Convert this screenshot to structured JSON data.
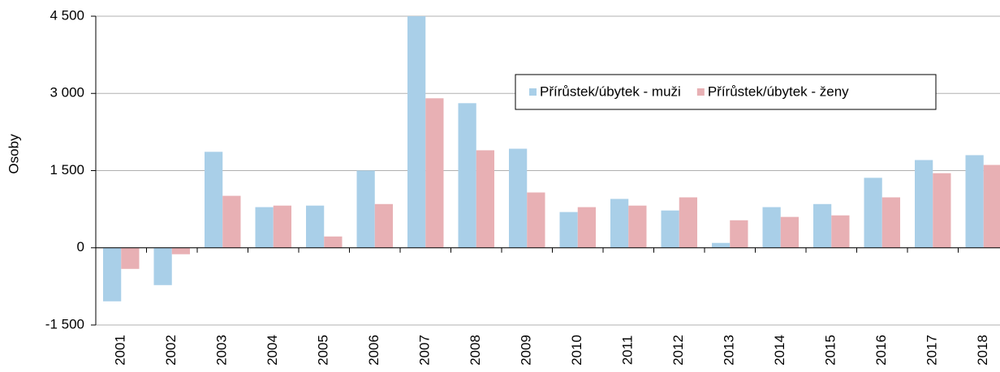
{
  "chart_data": {
    "type": "bar",
    "y_label": "Osoby",
    "categories": [
      "2001",
      "2002",
      "2003",
      "2004",
      "2005",
      "2006",
      "2007",
      "2008",
      "2009",
      "2010",
      "2011",
      "2012",
      "2013",
      "2014",
      "2015",
      "2016",
      "2017",
      "2018"
    ],
    "series": [
      {
        "name": "Přírůstek/úbytek - muži",
        "color": "#a9cfe8",
        "values": [
          -1040,
          -725,
          1865,
          790,
          820,
          1500,
          4500,
          2810,
          1925,
          695,
          950,
          725,
          95,
          790,
          850,
          1360,
          1705,
          1800
        ]
      },
      {
        "name": "Přírůstek/úbytek - ženy",
        "color": "#e8b0b4",
        "values": [
          -410,
          -125,
          1010,
          820,
          220,
          850,
          2905,
          1895,
          1075,
          790,
          820,
          980,
          535,
          600,
          630,
          980,
          1450,
          1610
        ]
      }
    ],
    "ylim": [
      -1500,
      4500
    ],
    "yticks": [
      {
        "value": -1500,
        "label": "-1 500"
      },
      0,
      {
        "value": 1500,
        "label": "1 500"
      },
      {
        "value": 3000,
        "label": "3 000"
      },
      {
        "value": 4500,
        "label": "4 500"
      }
    ],
    "grid": true
  }
}
